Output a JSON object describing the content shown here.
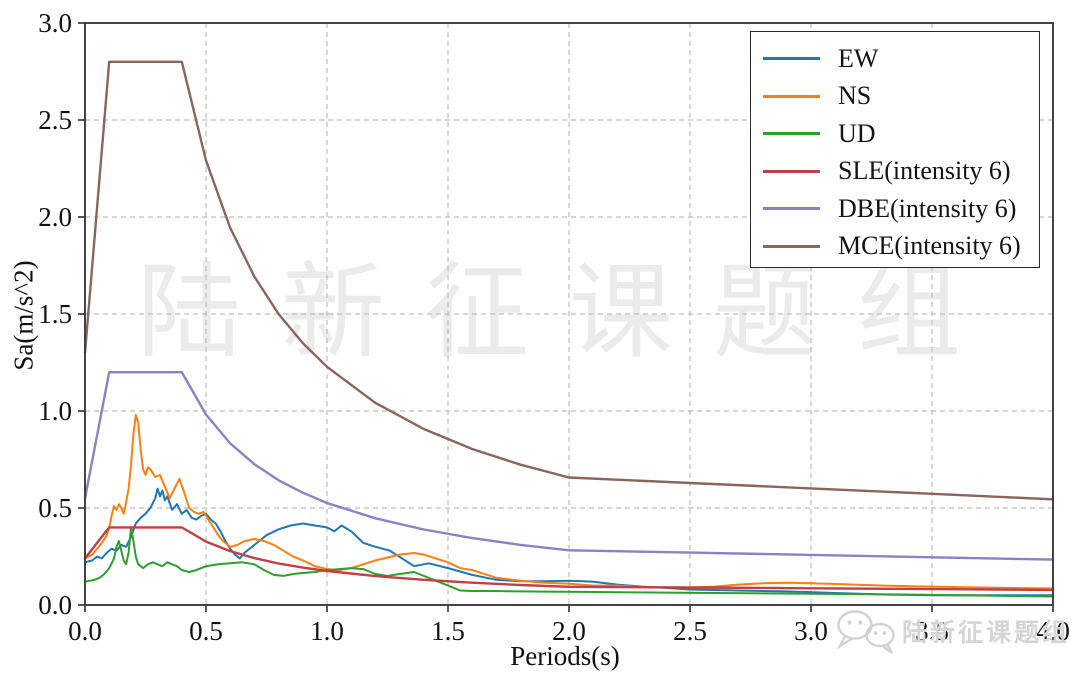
{
  "colors": {
    "axis": "#3b3b3b",
    "grid": "#bdbdbd",
    "tick_label": "#111111",
    "watermark": "#ebebeb",
    "badge": "#d5d5d5",
    "legend_border": "#2b2b2b",
    "background": "#ffffff"
  },
  "watermark": {
    "text": "陆新征课题组",
    "badge_text": "陆新征课题组"
  },
  "chart_data": {
    "type": "line",
    "title": "",
    "xlabel": "Periods(s)",
    "ylabel": "Sa(m/s^2)",
    "xlim": [
      0.0,
      4.0
    ],
    "ylim": [
      0.0,
      3.0
    ],
    "grid": true,
    "grid_style": "dashed",
    "legend_position": "upper right",
    "xticks": {
      "values": [
        0,
        0.5,
        1.0,
        1.5,
        2.0,
        2.5,
        3.0,
        3.5,
        4.0
      ],
      "labels": [
        "0.0",
        "0.5",
        "1.0",
        "1.5",
        "2.0",
        "2.5",
        "3.0",
        "3.5",
        "4.0"
      ]
    },
    "yticks": {
      "values": [
        0,
        0.5,
        1.0,
        1.5,
        2.0,
        2.5,
        3.0
      ],
      "labels": [
        "0.0",
        "0.5",
        "1.0",
        "1.5",
        "2.0",
        "2.5",
        "3.0"
      ]
    },
    "series": [
      {
        "id": "ew",
        "name": "EW",
        "color": "#1f77b4",
        "width": 2,
        "points": [
          [
            0,
            0.22
          ],
          [
            0.03,
            0.23
          ],
          [
            0.05,
            0.25
          ],
          [
            0.07,
            0.24
          ],
          [
            0.09,
            0.27
          ],
          [
            0.11,
            0.29
          ],
          [
            0.13,
            0.28
          ],
          [
            0.15,
            0.31
          ],
          [
            0.17,
            0.3
          ],
          [
            0.19,
            0.35
          ],
          [
            0.21,
            0.42
          ],
          [
            0.23,
            0.45
          ],
          [
            0.25,
            0.47
          ],
          [
            0.27,
            0.5
          ],
          [
            0.29,
            0.55
          ],
          [
            0.3,
            0.6
          ],
          [
            0.31,
            0.56
          ],
          [
            0.32,
            0.59
          ],
          [
            0.33,
            0.54
          ],
          [
            0.34,
            0.56
          ],
          [
            0.36,
            0.49
          ],
          [
            0.38,
            0.52
          ],
          [
            0.4,
            0.47
          ],
          [
            0.42,
            0.49
          ],
          [
            0.44,
            0.45
          ],
          [
            0.46,
            0.44
          ],
          [
            0.48,
            0.46
          ],
          [
            0.5,
            0.47
          ],
          [
            0.52,
            0.44
          ],
          [
            0.54,
            0.42
          ],
          [
            0.56,
            0.38
          ],
          [
            0.58,
            0.33
          ],
          [
            0.6,
            0.29
          ],
          [
            0.62,
            0.26
          ],
          [
            0.64,
            0.24
          ],
          [
            0.66,
            0.27
          ],
          [
            0.7,
            0.31
          ],
          [
            0.75,
            0.36
          ],
          [
            0.8,
            0.39
          ],
          [
            0.85,
            0.41
          ],
          [
            0.9,
            0.42
          ],
          [
            0.95,
            0.41
          ],
          [
            1.0,
            0.4
          ],
          [
            1.03,
            0.38
          ],
          [
            1.06,
            0.41
          ],
          [
            1.1,
            0.38
          ],
          [
            1.15,
            0.32
          ],
          [
            1.2,
            0.3
          ],
          [
            1.26,
            0.28
          ],
          [
            1.31,
            0.24
          ],
          [
            1.36,
            0.2
          ],
          [
            1.42,
            0.215
          ],
          [
            1.5,
            0.19
          ],
          [
            1.6,
            0.155
          ],
          [
            1.7,
            0.13
          ],
          [
            1.8,
            0.122
          ],
          [
            1.9,
            0.122
          ],
          [
            2.0,
            0.125
          ],
          [
            2.05,
            0.123
          ],
          [
            2.1,
            0.12
          ],
          [
            2.2,
            0.105
          ],
          [
            2.3,
            0.095
          ],
          [
            2.4,
            0.088
          ],
          [
            2.5,
            0.08
          ],
          [
            2.7,
            0.075
          ],
          [
            2.9,
            0.07
          ],
          [
            3.1,
            0.062
          ],
          [
            3.3,
            0.054
          ],
          [
            3.5,
            0.05
          ],
          [
            3.7,
            0.05
          ],
          [
            4.0,
            0.05
          ]
        ]
      },
      {
        "id": "ns",
        "name": "NS",
        "color": "#ff7f0e",
        "width": 2,
        "points": [
          [
            0,
            0.24
          ],
          [
            0.03,
            0.26
          ],
          [
            0.05,
            0.29
          ],
          [
            0.07,
            0.32
          ],
          [
            0.09,
            0.36
          ],
          [
            0.1,
            0.4
          ],
          [
            0.11,
            0.46
          ],
          [
            0.12,
            0.51
          ],
          [
            0.13,
            0.49
          ],
          [
            0.14,
            0.52
          ],
          [
            0.15,
            0.5
          ],
          [
            0.16,
            0.47
          ],
          [
            0.17,
            0.53
          ],
          [
            0.18,
            0.6
          ],
          [
            0.19,
            0.72
          ],
          [
            0.2,
            0.88
          ],
          [
            0.21,
            0.98
          ],
          [
            0.22,
            0.94
          ],
          [
            0.23,
            0.8
          ],
          [
            0.24,
            0.7
          ],
          [
            0.25,
            0.67
          ],
          [
            0.26,
            0.71
          ],
          [
            0.27,
            0.7
          ],
          [
            0.29,
            0.66
          ],
          [
            0.31,
            0.67
          ],
          [
            0.33,
            0.61
          ],
          [
            0.35,
            0.55
          ],
          [
            0.37,
            0.6
          ],
          [
            0.39,
            0.65
          ],
          [
            0.41,
            0.58
          ],
          [
            0.43,
            0.5
          ],
          [
            0.45,
            0.48
          ],
          [
            0.47,
            0.47
          ],
          [
            0.49,
            0.48
          ],
          [
            0.51,
            0.44
          ],
          [
            0.53,
            0.4
          ],
          [
            0.55,
            0.36
          ],
          [
            0.57,
            0.33
          ],
          [
            0.6,
            0.3
          ],
          [
            0.63,
            0.31
          ],
          [
            0.66,
            0.33
          ],
          [
            0.7,
            0.34
          ],
          [
            0.74,
            0.33
          ],
          [
            0.78,
            0.31
          ],
          [
            0.82,
            0.28
          ],
          [
            0.86,
            0.25
          ],
          [
            0.9,
            0.23
          ],
          [
            0.95,
            0.2
          ],
          [
            1.0,
            0.185
          ],
          [
            1.05,
            0.18
          ],
          [
            1.1,
            0.19
          ],
          [
            1.15,
            0.21
          ],
          [
            1.2,
            0.23
          ],
          [
            1.25,
            0.245
          ],
          [
            1.3,
            0.26
          ],
          [
            1.36,
            0.268
          ],
          [
            1.4,
            0.26
          ],
          [
            1.45,
            0.24
          ],
          [
            1.5,
            0.22
          ],
          [
            1.55,
            0.19
          ],
          [
            1.6,
            0.18
          ],
          [
            1.7,
            0.14
          ],
          [
            1.8,
            0.125
          ],
          [
            1.9,
            0.115
          ],
          [
            2.0,
            0.11
          ],
          [
            2.1,
            0.1
          ],
          [
            2.2,
            0.1
          ],
          [
            2.3,
            0.092
          ],
          [
            2.4,
            0.09
          ],
          [
            2.5,
            0.09
          ],
          [
            2.6,
            0.095
          ],
          [
            2.7,
            0.105
          ],
          [
            2.8,
            0.112
          ],
          [
            2.9,
            0.115
          ],
          [
            3.0,
            0.112
          ],
          [
            3.1,
            0.108
          ],
          [
            3.3,
            0.1
          ],
          [
            3.5,
            0.095
          ],
          [
            3.7,
            0.09
          ],
          [
            4.0,
            0.085
          ]
        ]
      },
      {
        "id": "ud",
        "name": "UD",
        "color": "#2ca02c",
        "width": 2,
        "points": [
          [
            0,
            0.12
          ],
          [
            0.04,
            0.13
          ],
          [
            0.06,
            0.14
          ],
          [
            0.08,
            0.16
          ],
          [
            0.1,
            0.19
          ],
          [
            0.12,
            0.24
          ],
          [
            0.13,
            0.3
          ],
          [
            0.14,
            0.33
          ],
          [
            0.15,
            0.28
          ],
          [
            0.16,
            0.23
          ],
          [
            0.17,
            0.21
          ],
          [
            0.18,
            0.27
          ],
          [
            0.19,
            0.4
          ],
          [
            0.2,
            0.33
          ],
          [
            0.21,
            0.25
          ],
          [
            0.22,
            0.21
          ],
          [
            0.24,
            0.19
          ],
          [
            0.26,
            0.21
          ],
          [
            0.28,
            0.22
          ],
          [
            0.3,
            0.21
          ],
          [
            0.32,
            0.2
          ],
          [
            0.34,
            0.22
          ],
          [
            0.36,
            0.21
          ],
          [
            0.38,
            0.2
          ],
          [
            0.4,
            0.18
          ],
          [
            0.43,
            0.17
          ],
          [
            0.46,
            0.18
          ],
          [
            0.5,
            0.2
          ],
          [
            0.55,
            0.21
          ],
          [
            0.6,
            0.215
          ],
          [
            0.65,
            0.22
          ],
          [
            0.7,
            0.21
          ],
          [
            0.74,
            0.18
          ],
          [
            0.78,
            0.155
          ],
          [
            0.82,
            0.15
          ],
          [
            0.86,
            0.16
          ],
          [
            0.9,
            0.165
          ],
          [
            0.95,
            0.17
          ],
          [
            1.0,
            0.18
          ],
          [
            1.05,
            0.185
          ],
          [
            1.1,
            0.19
          ],
          [
            1.15,
            0.185
          ],
          [
            1.2,
            0.16
          ],
          [
            1.25,
            0.15
          ],
          [
            1.3,
            0.16
          ],
          [
            1.36,
            0.17
          ],
          [
            1.42,
            0.14
          ],
          [
            1.46,
            0.12
          ],
          [
            1.5,
            0.1
          ],
          [
            1.55,
            0.075
          ],
          [
            1.6,
            0.072
          ],
          [
            1.7,
            0.072
          ],
          [
            1.8,
            0.07
          ],
          [
            1.9,
            0.069
          ],
          [
            2.0,
            0.068
          ],
          [
            2.2,
            0.066
          ],
          [
            2.4,
            0.064
          ],
          [
            2.6,
            0.062
          ],
          [
            2.8,
            0.06
          ],
          [
            3.0,
            0.058
          ],
          [
            3.2,
            0.056
          ],
          [
            3.5,
            0.052
          ],
          [
            3.8,
            0.047
          ],
          [
            4.0,
            0.044
          ]
        ]
      },
      {
        "id": "sle",
        "name": "SLE(intensity 6)",
        "color": "#bf4045",
        "width": 2.4,
        "points": [
          [
            0,
            0.24
          ],
          [
            0.05,
            0.32
          ],
          [
            0.1,
            0.4
          ],
          [
            0.4,
            0.4
          ],
          [
            0.5,
            0.327
          ],
          [
            0.6,
            0.278
          ],
          [
            0.7,
            0.242
          ],
          [
            0.8,
            0.214
          ],
          [
            0.9,
            0.193
          ],
          [
            1.0,
            0.175
          ],
          [
            1.2,
            0.149
          ],
          [
            1.4,
            0.13
          ],
          [
            1.6,
            0.115
          ],
          [
            1.8,
            0.103
          ],
          [
            2.0,
            0.094
          ],
          [
            2.5,
            0.09
          ],
          [
            3.0,
            0.086
          ],
          [
            3.5,
            0.082
          ],
          [
            4.0,
            0.078
          ]
        ]
      },
      {
        "id": "dbe",
        "name": "DBE(intensity 6)",
        "color": "#8f7fc4",
        "width": 2.4,
        "points": [
          [
            0,
            0.55
          ],
          [
            0.1,
            1.2
          ],
          [
            0.4,
            1.2
          ],
          [
            0.5,
            0.982
          ],
          [
            0.6,
            0.833
          ],
          [
            0.7,
            0.726
          ],
          [
            0.8,
            0.643
          ],
          [
            0.9,
            0.579
          ],
          [
            1.0,
            0.526
          ],
          [
            1.2,
            0.447
          ],
          [
            1.4,
            0.389
          ],
          [
            1.6,
            0.345
          ],
          [
            1.8,
            0.31
          ],
          [
            2.0,
            0.282
          ],
          [
            2.5,
            0.27
          ],
          [
            3.0,
            0.258
          ],
          [
            3.5,
            0.246
          ],
          [
            4.0,
            0.234
          ]
        ]
      },
      {
        "id": "mce",
        "name": "MCE(intensity 6)",
        "color": "#8a655c",
        "width": 2.4,
        "points": [
          [
            0,
            1.3
          ],
          [
            0.1,
            2.8
          ],
          [
            0.4,
            2.8
          ],
          [
            0.5,
            2.291
          ],
          [
            0.6,
            1.944
          ],
          [
            0.7,
            1.693
          ],
          [
            0.8,
            1.5
          ],
          [
            0.9,
            1.35
          ],
          [
            1.0,
            1.228
          ],
          [
            1.2,
            1.042
          ],
          [
            1.4,
            0.907
          ],
          [
            1.6,
            0.804
          ],
          [
            1.8,
            0.723
          ],
          [
            2.0,
            0.657
          ],
          [
            2.5,
            0.629
          ],
          [
            3.0,
            0.601
          ],
          [
            3.5,
            0.573
          ],
          [
            4.0,
            0.545
          ]
        ]
      }
    ]
  }
}
